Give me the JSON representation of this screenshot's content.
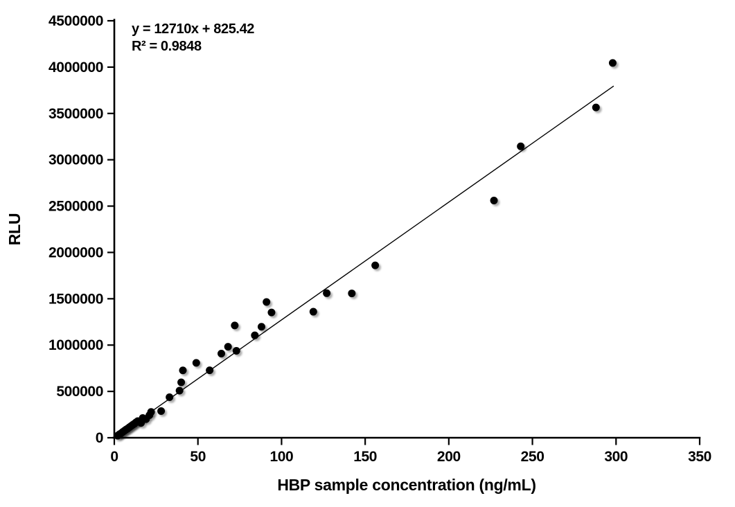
{
  "chart_data": {
    "type": "scatter",
    "title": "",
    "xlabel": "HBP sample concentration (ng/mL)",
    "ylabel": "RLU",
    "xlim": [
      0,
      350
    ],
    "ylim": [
      0,
      4500000
    ],
    "xticks": [
      0,
      50,
      100,
      150,
      200,
      250,
      300,
      350
    ],
    "yticks": [
      0,
      500000,
      1000000,
      1500000,
      2000000,
      2500000,
      3000000,
      3500000,
      4000000,
      4500000
    ],
    "grid": false,
    "legend": "none",
    "annotation": {
      "line1": "y = 12710x + 825.42",
      "line2": "R² = 0.9848"
    },
    "trendline": {
      "slope": 12710,
      "intercept": 825.42,
      "x_start": 1,
      "x_end": 298.6
    },
    "marker_color": "#000000",
    "line_color": "#000000",
    "points": [
      [
        2,
        22000
      ],
      [
        3,
        36000
      ],
      [
        4,
        48000
      ],
      [
        5,
        62000
      ],
      [
        6,
        75000
      ],
      [
        7,
        88000
      ],
      [
        8,
        99000
      ],
      [
        9,
        113000
      ],
      [
        10,
        126000
      ],
      [
        11,
        139000
      ],
      [
        12,
        151000
      ],
      [
        13,
        166000
      ],
      [
        14,
        179000
      ],
      [
        16,
        160000
      ],
      [
        17,
        213000
      ],
      [
        19,
        201000
      ],
      [
        21,
        243000
      ],
      [
        22,
        278000
      ],
      [
        28,
        288000
      ],
      [
        33,
        437000
      ],
      [
        39,
        508000
      ],
      [
        40,
        598000
      ],
      [
        41,
        727000
      ],
      [
        49,
        808000
      ],
      [
        57,
        728000
      ],
      [
        64,
        908000
      ],
      [
        68,
        982000
      ],
      [
        72,
        1212000
      ],
      [
        73,
        938000
      ],
      [
        84,
        1105000
      ],
      [
        88,
        1198000
      ],
      [
        91,
        1465000
      ],
      [
        94,
        1352000
      ],
      [
        119,
        1360000
      ],
      [
        127,
        1560000
      ],
      [
        142,
        1558000
      ],
      [
        156,
        1860000
      ],
      [
        227,
        2560000
      ],
      [
        243,
        3145000
      ],
      [
        288,
        3565000
      ],
      [
        298,
        4045000
      ]
    ]
  }
}
